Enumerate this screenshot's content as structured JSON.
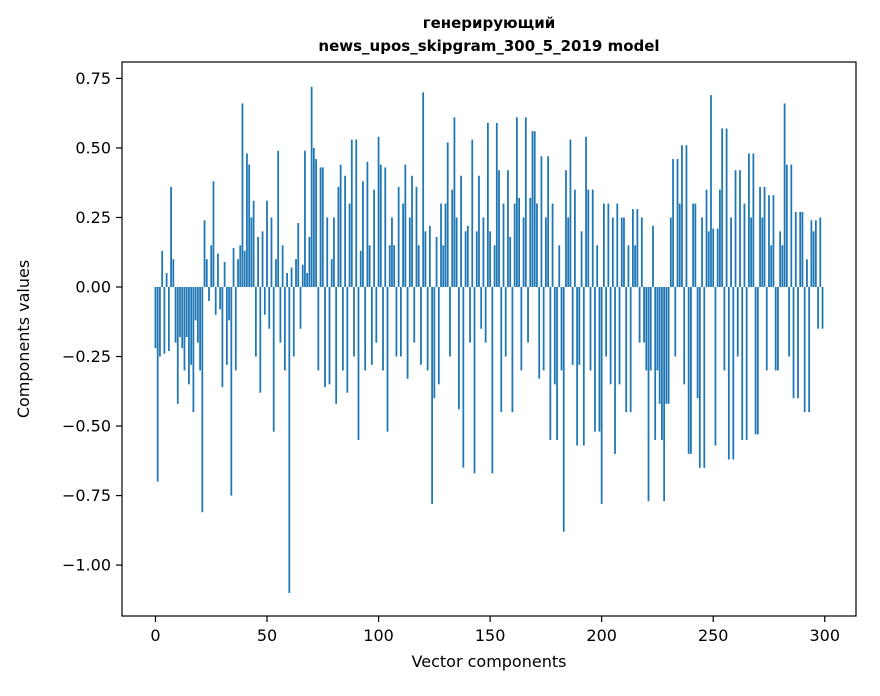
{
  "figure": {
    "title_line1": "генерирующий",
    "title_line2": "news_upos_skipgram_300_5_2019 model",
    "xlabel": "Vector components",
    "ylabel": "Components values"
  },
  "chart_data": {
    "type": "bar",
    "title": "генерирующий\nnews_upos_skipgram_300_5_2019 model",
    "xlabel": "Vector components",
    "ylabel": "Components values",
    "bar_color": "#1f77b4",
    "grid": false,
    "legend": "none",
    "xlim": [
      -15,
      314
    ],
    "ylim": [
      -1.183,
      0.809
    ],
    "xticks": [
      0,
      50,
      100,
      150,
      200,
      250,
      300
    ],
    "yticks": [
      0.75,
      0.5,
      0.25,
      0.0,
      -0.25,
      -0.5,
      -0.75,
      -1.0
    ],
    "x_start": 0,
    "values": [
      -0.22,
      -0.7,
      -0.25,
      0.13,
      -0.24,
      0.05,
      -0.23,
      0.36,
      0.1,
      -0.2,
      -0.42,
      -0.18,
      -0.22,
      -0.3,
      -0.18,
      -0.35,
      -0.28,
      -0.45,
      -0.12,
      -0.2,
      -0.3,
      -0.81,
      0.24,
      0.1,
      -0.05,
      0.15,
      0.38,
      -0.1,
      0.12,
      -0.08,
      -0.36,
      0.09,
      -0.28,
      -0.12,
      -0.75,
      0.14,
      -0.3,
      0.1,
      0.15,
      0.66,
      0.13,
      0.48,
      0.44,
      0.25,
      0.31,
      -0.25,
      0.18,
      -0.38,
      0.2,
      -0.1,
      0.31,
      -0.15,
      0.25,
      -0.52,
      0.1,
      0.49,
      -0.2,
      0.15,
      -0.3,
      0.05,
      -1.1,
      0.07,
      -0.25,
      0.1,
      0.23,
      -0.15,
      0.08,
      0.49,
      0.05,
      0.18,
      0.72,
      0.5,
      0.46,
      -0.3,
      0.43,
      0.43,
      -0.36,
      0.25,
      -0.35,
      0.1,
      0.25,
      -0.42,
      0.36,
      0.44,
      -0.3,
      0.4,
      -0.38,
      0.3,
      0.53,
      -0.25,
      0.53,
      -0.55,
      0.13,
      0.38,
      -0.3,
      0.45,
      0.15,
      -0.28,
      0.35,
      -0.2,
      0.54,
      0.44,
      -0.3,
      0.43,
      -0.52,
      0.15,
      0.25,
      0.15,
      -0.25,
      0.36,
      -0.25,
      0.3,
      0.44,
      -0.33,
      0.25,
      0.4,
      -0.2,
      0.36,
      0.15,
      -0.28,
      0.7,
      0.2,
      -0.3,
      0.22,
      -0.78,
      -0.4,
      0.18,
      -0.35,
      0.3,
      0.15,
      0.3,
      0.52,
      -0.25,
      0.35,
      0.61,
      0.25,
      -0.44,
      0.4,
      -0.65,
      0.2,
      0.22,
      -0.2,
      0.53,
      -0.67,
      0.2,
      0.4,
      -0.15,
      0.25,
      -0.2,
      0.59,
      0.2,
      -0.67,
      0.15,
      0.59,
      0.42,
      -0.45,
      0.3,
      -0.25,
      0.42,
      0.18,
      -0.45,
      0.3,
      0.61,
      0.32,
      -0.3,
      0.25,
      0.61,
      -0.2,
      0.32,
      0.56,
      0.56,
      0.3,
      -0.33,
      0.47,
      -0.3,
      0.25,
      0.47,
      -0.55,
      0.3,
      -0.35,
      -0.55,
      0.15,
      -0.3,
      -0.88,
      0.42,
      0.25,
      0.53,
      -0.28,
      0.35,
      -0.57,
      -0.28,
      0.2,
      -0.57,
      0.54,
      0.35,
      -0.3,
      0.35,
      -0.52,
      0.15,
      -0.52,
      -0.78,
      0.3,
      -0.25,
      0.3,
      -0.35,
      0.25,
      -0.6,
      0.3,
      -0.35,
      0.25,
      0.25,
      -0.45,
      0.15,
      -0.45,
      0.28,
      0.15,
      0.28,
      -0.2,
      0.25,
      -0.2,
      -0.3,
      -0.77,
      -0.3,
      0.22,
      -0.55,
      -0.3,
      -0.42,
      -0.55,
      -0.77,
      -0.42,
      -0.42,
      0.25,
      0.46,
      -0.25,
      0.46,
      0.3,
      0.51,
      -0.35,
      0.51,
      -0.6,
      -0.6,
      0.3,
      0.3,
      -0.4,
      -0.65,
      0.25,
      -0.65,
      0.35,
      0.2,
      0.69,
      0.21,
      -0.57,
      0.21,
      0.35,
      0.57,
      -0.3,
      0.57,
      -0.62,
      0.25,
      -0.62,
      0.42,
      -0.25,
      0.42,
      -0.55,
      0.3,
      -0.55,
      0.48,
      0.25,
      0.48,
      -0.53,
      -0.53,
      0.36,
      0.25,
      0.36,
      -0.3,
      0.33,
      0.15,
      0.33,
      -0.3,
      -0.3,
      0.2,
      0.15,
      0.66,
      0.44,
      -0.25,
      0.44,
      -0.4,
      0.27,
      -0.4,
      0.27,
      0.27,
      -0.45,
      0.1,
      -0.45,
      0.24,
      0.2,
      0.24,
      -0.15,
      0.25,
      -0.15
    ]
  }
}
